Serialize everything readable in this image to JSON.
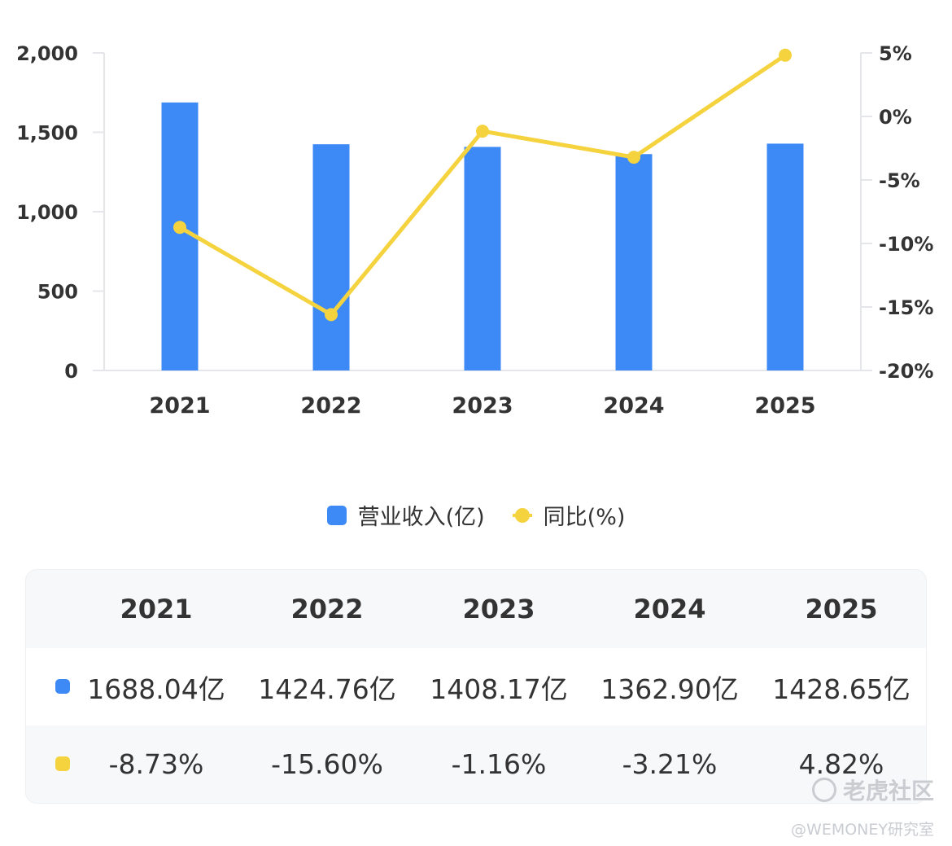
{
  "chart_data": {
    "type": "bar",
    "categories": [
      "2021",
      "2022",
      "2023",
      "2024",
      "2025"
    ],
    "series": [
      {
        "name": "营业收入(亿)",
        "type": "bar",
        "axis": "left",
        "values": [
          1688.04,
          1424.76,
          1408.17,
          1362.9,
          1428.65
        ]
      },
      {
        "name": "同比(%)",
        "type": "line",
        "axis": "right",
        "values": [
          -8.73,
          -15.6,
          -1.16,
          -3.21,
          4.82
        ]
      }
    ],
    "y_left": {
      "ylim": [
        0,
        2000
      ],
      "ticks": [
        0,
        500,
        1000,
        1500,
        2000
      ],
      "tick_labels": [
        "0",
        "500",
        "1,000",
        "1,500",
        "2,000"
      ]
    },
    "y_right": {
      "ylim": [
        -20,
        5
      ],
      "ticks": [
        5,
        0,
        -5,
        -10,
        -15,
        -20
      ],
      "tick_labels": [
        "5%",
        "0%",
        "-5%",
        "-10%",
        "-15%",
        "-20%"
      ]
    },
    "colors": {
      "bar": "#3d8af7",
      "line": "#f5d33f"
    },
    "legend_position": "bottom-center",
    "grid": false
  },
  "legend": {
    "bar_label": "营业收入(亿)",
    "line_label": "同比(%)"
  },
  "table": {
    "headers": [
      "2021",
      "2022",
      "2023",
      "2024",
      "2025"
    ],
    "revenue_row": [
      "1688.04亿",
      "1424.76亿",
      "1408.17亿",
      "1362.90亿",
      "1428.65亿"
    ],
    "yoy_row": [
      "-8.73%",
      "-15.60%",
      "-1.16%",
      "-3.21%",
      "4.82%"
    ]
  },
  "watermark": {
    "brand": "老虎社区",
    "user": "@WEMONEY研究室"
  }
}
